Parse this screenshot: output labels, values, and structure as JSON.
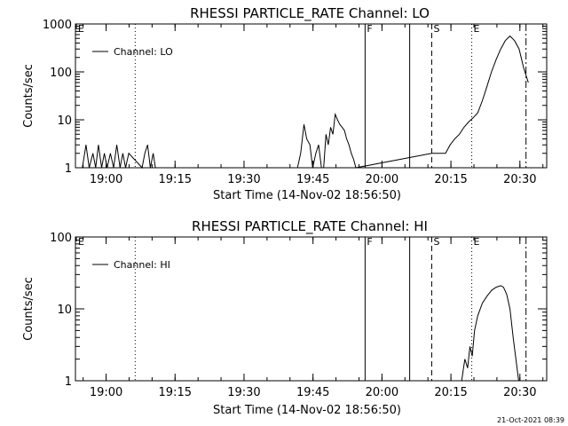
{
  "chart_data": [
    {
      "type": "line",
      "title": "RHESSI PARTICLE_RATE Channel: LO",
      "xlabel": "Start Time (14-Nov-02 18:56:50)",
      "ylabel": "Counts/sec",
      "legend_label": "Channel: LO",
      "legend_position": "top-left",
      "y_scale": "log",
      "ylim": [
        1,
        1000
      ],
      "xlim_min": [
        -3.5,
        39
      ],
      "x_ticks": [
        "19:00",
        "19:15",
        "19:30",
        "19:45",
        "20:00",
        "20:15",
        "20:30"
      ],
      "y_ticks": [
        "1",
        "10",
        "100",
        "1000"
      ],
      "markers": [
        {
          "label": "E",
          "style": "solid-tick",
          "x_min": -3.3
        },
        {
          "label": "",
          "style": "dotted",
          "x_min": 9.5
        },
        {
          "label": "F",
          "style": "solid",
          "x_min": 59.5
        },
        {
          "label": "",
          "style": "solid",
          "x_min": 69.2
        },
        {
          "label": "S",
          "style": "dashed",
          "x_min": 74
        },
        {
          "label": "E",
          "style": "dotted",
          "x_min": 82.7
        },
        {
          "label": "",
          "style": "dashdot",
          "x_min": 94.5
        }
      ],
      "x_min": [
        -2,
        -1.2,
        -0.5,
        0.3,
        0.9,
        1.5,
        2.2,
        2.8,
        3.4,
        4.1,
        4.8,
        5.5,
        6.2,
        6.8,
        7.4,
        8.1,
        11,
        11.6,
        12.2,
        12.8,
        13.4,
        13.9,
        44.8,
        45.5,
        46.2,
        46.8,
        47.5,
        48.1,
        48.8,
        49.4,
        50,
        50.5,
        51,
        51.5,
        52,
        52.5,
        53,
        53.5,
        54,
        54.5,
        55,
        55.5,
        56,
        56.5,
        57,
        57.5,
        74,
        75,
        76,
        77,
        78,
        79,
        80,
        81,
        82,
        83,
        84,
        85,
        86,
        87,
        88,
        89,
        90,
        91,
        92,
        93,
        94,
        95
      ],
      "values": [
        1,
        3,
        1,
        2,
        1,
        3,
        1,
        2,
        1,
        2,
        1,
        3,
        1,
        2,
        1,
        2,
        1,
        2,
        3,
        1,
        2,
        1,
        1,
        2,
        8,
        4,
        3,
        1,
        2,
        3,
        1,
        1,
        5,
        3,
        7,
        5,
        13,
        10,
        8,
        7,
        6,
        4,
        3,
        2,
        1.5,
        1,
        2,
        2,
        2,
        2,
        3,
        4,
        5,
        7,
        9,
        11,
        14,
        25,
        50,
        100,
        180,
        300,
        450,
        560,
        450,
        300,
        120,
        60
      ]
    },
    {
      "type": "line",
      "title": "RHESSI PARTICLE_RATE Channel: HI",
      "xlabel": "Start Time (14-Nov-02 18:56:50)",
      "ylabel": "Counts/sec",
      "legend_label": "Channel: HI",
      "legend_position": "top-left",
      "y_scale": "log",
      "ylim": [
        1,
        100
      ],
      "x_ticks": [
        "19:00",
        "19:15",
        "19:30",
        "19:45",
        "20:00",
        "20:15",
        "20:30"
      ],
      "y_ticks": [
        "1",
        "10",
        "100"
      ],
      "markers": [
        {
          "label": "E",
          "style": "solid-tick",
          "x_min": -3.3
        },
        {
          "label": "",
          "style": "dotted",
          "x_min": 9.5
        },
        {
          "label": "F",
          "style": "solid",
          "x_min": 59.5
        },
        {
          "label": "",
          "style": "solid",
          "x_min": 69.2
        },
        {
          "label": "S",
          "style": "dashed",
          "x_min": 74
        },
        {
          "label": "E",
          "style": "dotted",
          "x_min": 82.7
        },
        {
          "label": "",
          "style": "dashdot",
          "x_min": 94.5
        }
      ],
      "x_min": [
        80.5,
        81.2,
        81.8,
        82.3,
        82.8,
        83.3,
        84,
        85,
        86,
        87,
        88,
        89,
        89.6,
        90.3,
        91,
        91.7,
        92.3,
        92.9
      ],
      "values": [
        1,
        2,
        1.5,
        3,
        2.2,
        5,
        8,
        12,
        15,
        18,
        20,
        21,
        20,
        16,
        10,
        4,
        2,
        1
      ]
    }
  ],
  "footer": {
    "timestamp": "21-Oct-2021 08:39"
  }
}
